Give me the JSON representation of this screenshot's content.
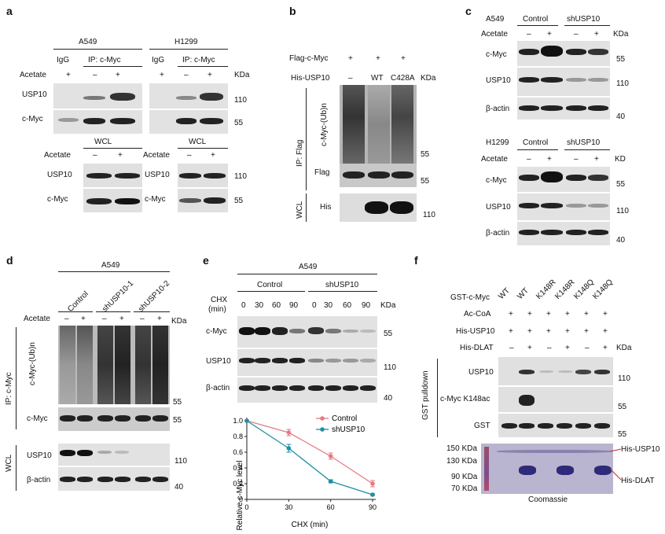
{
  "panel_labels": {
    "a": "a",
    "b": "b",
    "c": "c",
    "d": "d",
    "e": "e",
    "f": "f"
  },
  "a": {
    "a549": "A549",
    "h1299": "H1299",
    "igg": "IgG",
    "ip": "IP: c-Myc",
    "acetate": "Acetate",
    "minus": "–",
    "plus": "+",
    "kda": "KDa",
    "usp10": "USP10",
    "cmyc": "c-Myc",
    "wcl": "WCL",
    "m110": "110",
    "m55": "55"
  },
  "b": {
    "flag_cmyc": "Flag-c-Myc",
    "his_usp10": "His-USP10",
    "plus": "+",
    "minus": "–",
    "wt": "WT",
    "c428a": "C428A",
    "kda": "KDa",
    "ip_flag": "IP: Flag",
    "cmyc_ub": "c-Myc-(Ub)n",
    "flag": "Flag",
    "wcl": "WCL",
    "his": "His",
    "m55": "55",
    "m110": "110"
  },
  "c": {
    "a549": "A549",
    "h1299": "H1299",
    "control": "Control",
    "shusp10": "shUSP10",
    "acetate": "Acetate",
    "minus": "–",
    "plus": "+",
    "kda": "KDa",
    "kd": "KD",
    "cmyc": "c-Myc",
    "usp10": "USP10",
    "bactin": "β-actin",
    "m55": "55",
    "m110": "110",
    "m40": "40"
  },
  "d": {
    "a549": "A549",
    "control": "Control",
    "sh1": "shUSP10-1",
    "sh2": "shUSP10-2",
    "acetate": "Acetate",
    "minus": "–",
    "plus": "+",
    "kda": "KDa",
    "ip": "IP: c-Myc",
    "cmyc_ub": "c-Myc-(Ub)n",
    "cmyc": "c-Myc",
    "wcl": "WCL",
    "usp10": "USP10",
    "bactin": "β-actin",
    "m55": "55",
    "m110": "110",
    "m40": "40"
  },
  "e": {
    "a549": "A549",
    "control": "Control",
    "shusp10": "shUSP10",
    "chx": "CHX",
    "min": "(min)",
    "kda": "KDa",
    "times": [
      "0",
      "30",
      "60",
      "90",
      "0",
      "30",
      "60",
      "90"
    ],
    "cmyc": "c-Myc",
    "usp10": "USP10",
    "bactin": "β-actin",
    "m55": "55",
    "m110": "110",
    "m40": "40"
  },
  "f": {
    "gst_cmyc": "GST-c-Myc",
    "acCoA": "Ac-CoA",
    "his_usp10": "His-USP10",
    "his_dlat": "His-DLAT",
    "lanes": [
      "WT",
      "WT",
      "K148R",
      "K148R",
      "K148Q",
      "K148Q"
    ],
    "plus": "+",
    "minus": "–",
    "kda": "KDa",
    "gst_pulldown": "GST pulldown",
    "usp10": "USP10",
    "cmyc_k148ac": "c-Myc K148ac",
    "gst": "GST",
    "m110": "110",
    "m55": "55",
    "kda150": "150 KDa",
    "kda130": "130 KDa",
    "kda90": "90 KDa",
    "kda70": "70 KDa",
    "coomassie": "Coomassie",
    "lbl_his_usp10": "His-USP10",
    "lbl_his_dlat": "His-DLAT"
  },
  "chart_data": {
    "type": "line",
    "xlabel": "CHX (min)",
    "ylabel": "Relative c-Myc level",
    "x": [
      0,
      30,
      60,
      90
    ],
    "xlim": [
      0,
      90
    ],
    "ylim": [
      0,
      1.0
    ],
    "xticks": [
      "0",
      "30",
      "60",
      "90"
    ],
    "yticks": [
      "0",
      "0.2",
      "0.4",
      "0.6",
      "0.8",
      "1.0"
    ],
    "legend_position": "top-right",
    "series": [
      {
        "name": "Control",
        "values": [
          1.0,
          0.85,
          0.55,
          0.2
        ],
        "errors": [
          0,
          0.04,
          0.04,
          0.04
        ],
        "color": "#e57a87"
      },
      {
        "name": "shUSP10",
        "values": [
          1.0,
          0.65,
          0.23,
          0.06
        ],
        "errors": [
          0,
          0.05,
          0.02,
          0.01
        ],
        "color": "#1e8fa6"
      }
    ]
  }
}
